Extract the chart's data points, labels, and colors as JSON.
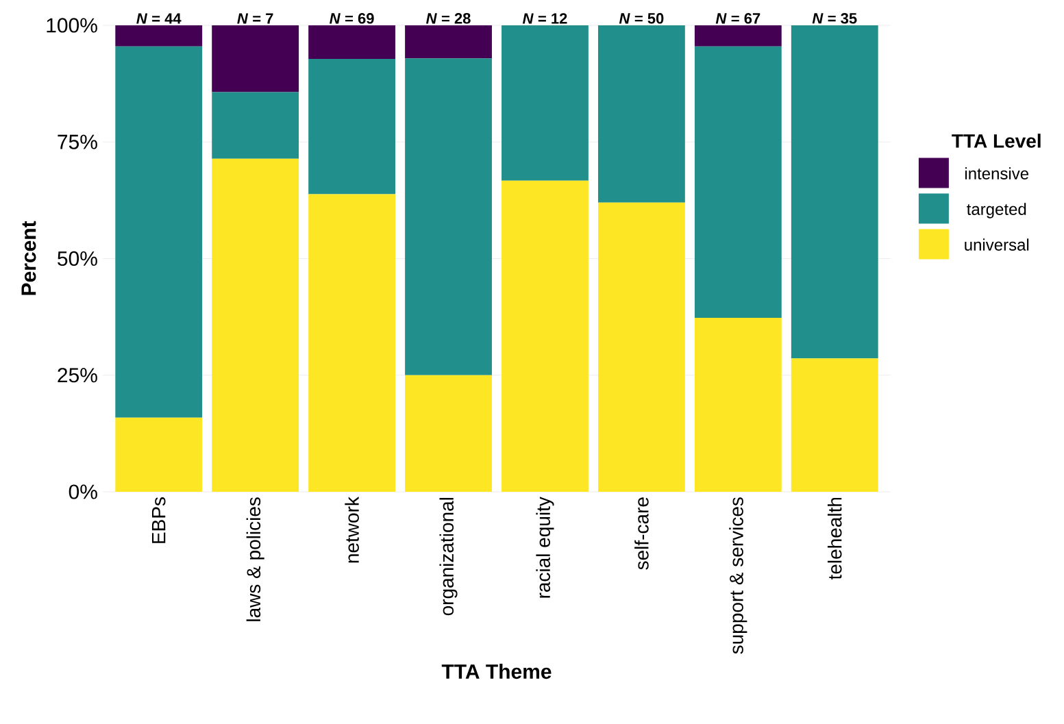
{
  "chart_data": {
    "type": "bar",
    "stacked": true,
    "categories": [
      "EBPs",
      "laws & policies",
      "network",
      "organizational",
      "racial equity",
      "self-care",
      "support & services",
      "telehealth"
    ],
    "series": [
      {
        "name": "universal",
        "color": "#fde725",
        "values": [
          15.9,
          71.4,
          63.8,
          25.0,
          66.7,
          62.0,
          37.3,
          28.6
        ]
      },
      {
        "name": "targeted",
        "color": "#21908c",
        "values": [
          79.6,
          14.3,
          29.0,
          67.9,
          33.3,
          38.0,
          58.2,
          71.4
        ]
      },
      {
        "name": "intensive",
        "color": "#440154",
        "values": [
          4.5,
          14.3,
          7.2,
          7.1,
          0,
          0,
          4.5,
          0
        ]
      }
    ],
    "xlabel": "TTA Theme",
    "ylabel": "Percent",
    "legend_title": "TTA Level",
    "legend": "right",
    "ylim": [
      0,
      100
    ],
    "yticks": [
      {
        "value": 0,
        "label": "0%"
      },
      {
        "value": 25,
        "label": "25%"
      },
      {
        "value": 50,
        "label": "50%"
      },
      {
        "value": 75,
        "label": "75%"
      },
      {
        "value": 100,
        "label": "100%"
      }
    ],
    "grid": "y",
    "annotations": [
      {
        "text": "*N* = 44",
        "x": "EBPs",
        "y": 100
      },
      {
        "text": "*N* = 7",
        "x": "laws & policies",
        "y": 100
      },
      {
        "text": "*N* = 69",
        "x": "network",
        "y": 100
      },
      {
        "text": "*N* = 28",
        "x": "organizational",
        "y": 100
      },
      {
        "text": "*N* = 12",
        "x": "racial equity",
        "y": 100
      },
      {
        "text": "*N* = 50",
        "x": "self-care",
        "y": 100
      },
      {
        "text": "*N* = 67",
        "x": "support & services",
        "y": 100
      },
      {
        "text": "*N* = 35",
        "x": "telehealth",
        "y": 100
      }
    ]
  }
}
